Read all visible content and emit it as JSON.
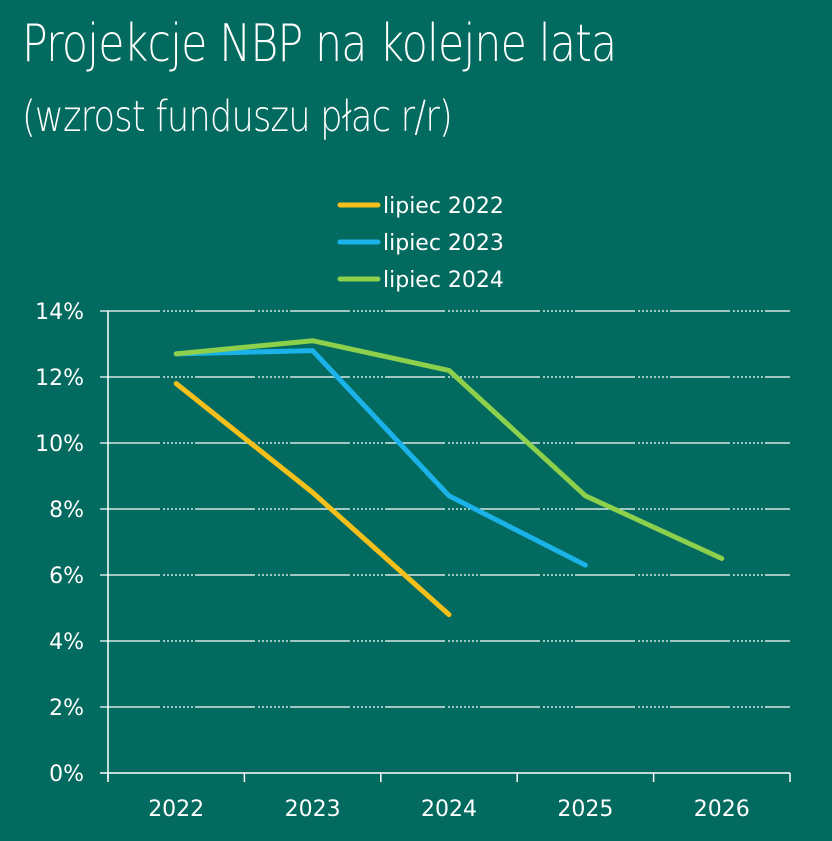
{
  "header": {
    "title": "Projekcje NBP na kolejne lata",
    "subtitle": "(wzrost funduszu płac r/r)"
  },
  "legend": [
    {
      "label": "lipiec 2022",
      "color": "#f5c01b"
    },
    {
      "label": "lipiec 2023",
      "color": "#1ab2e8"
    },
    {
      "label": "lipiec 2024",
      "color": "#8cd04c"
    }
  ],
  "colors": {
    "background": "#026a5e",
    "axis": "#ffffff",
    "grid": "#ffffff"
  },
  "chart_data": {
    "type": "line",
    "title": "Projekcje NBP na kolejne lata",
    "subtitle": "(wzrost funduszu płac r/r)",
    "xlabel": "",
    "ylabel": "",
    "categories": [
      "2022",
      "2023",
      "2024",
      "2025",
      "2026"
    ],
    "y_ticks": [
      "0%",
      "2%",
      "4%",
      "6%",
      "8%",
      "10%",
      "12%",
      "14%"
    ],
    "ylim": [
      0,
      14
    ],
    "grid": true,
    "legend_position": "top-center",
    "series": [
      {
        "name": "lipiec 2022",
        "color": "#f5c01b",
        "values": [
          11.8,
          8.5,
          4.8,
          null,
          null
        ]
      },
      {
        "name": "lipiec 2023",
        "color": "#1ab2e8",
        "values": [
          12.7,
          12.8,
          8.4,
          6.3,
          null
        ]
      },
      {
        "name": "lipiec 2024",
        "color": "#8cd04c",
        "values": [
          12.7,
          13.1,
          12.2,
          8.4,
          6.5
        ]
      }
    ]
  }
}
